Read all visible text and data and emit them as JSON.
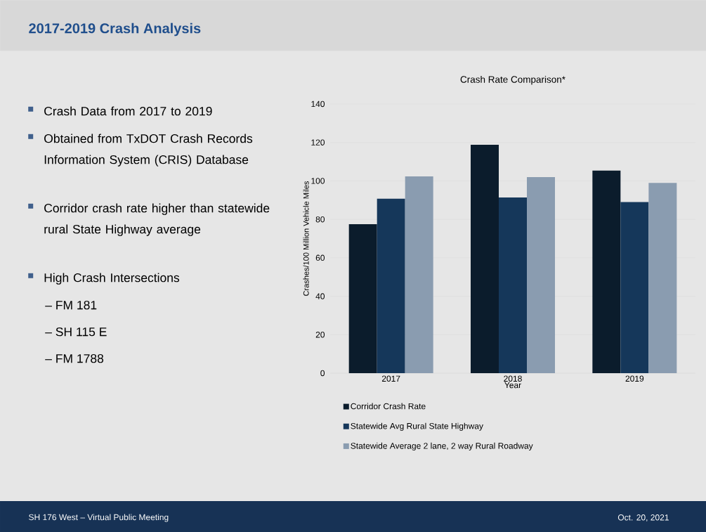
{
  "chart_data": {
    "type": "bar",
    "title": "Crash Rate Comparison*",
    "xlabel": "Year",
    "ylabel": "Crashes/100 Million Vehicle Miles",
    "categories": [
      "2017",
      "2018",
      "2019"
    ],
    "series": [
      {
        "name": "Corridor Crash Rate",
        "color": "#0b1c2c",
        "values": [
          77.5,
          118.8,
          105.4
        ]
      },
      {
        "name": "Statewide Avg Rural State Highway",
        "color": "#15375a",
        "values": [
          90.7,
          91.4,
          89.0
        ]
      },
      {
        "name": "Statewide Average 2 lane, 2 way Rural Roadway",
        "color": "#8a9cb0",
        "values": [
          102.3,
          102.0,
          99.0
        ]
      }
    ],
    "ylim": [
      0,
      140
    ],
    "yticks": [
      0,
      20,
      40,
      60,
      80,
      100,
      120,
      140
    ],
    "grid": "y",
    "legend": "bottom",
    "annotations": [
      "2017-2019 Crash Analysis",
      "Crash Data from 2017 to 2019",
      "Obtained from TxDOT Crash Records Information System (CRIS) Database",
      "Corridor crash rate higher than statewide rural State Highway average",
      "High Crash Intersections",
      "–  FM 181",
      "–  SH 115 E",
      "–  FM 1788",
      "SH 176 West – Virtual Public Meeting",
      "Oct. 20, 2021"
    ]
  }
}
